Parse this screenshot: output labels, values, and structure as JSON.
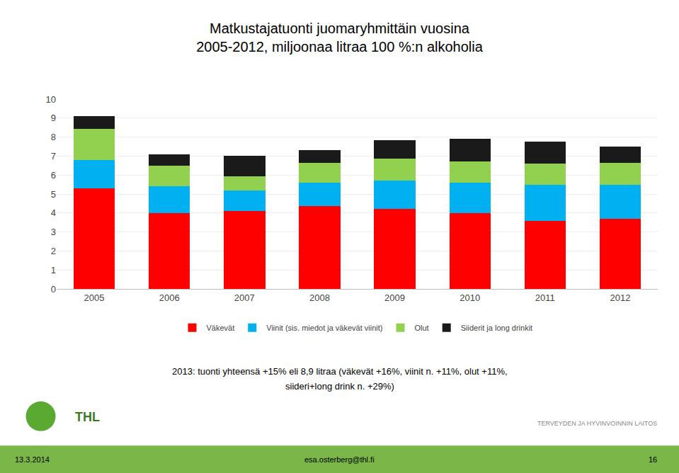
{
  "chart_data": {
    "type": "bar",
    "stacked": true,
    "title": "Matkustajatuonti juomaryhmittäin vuosina\n2005-2012, miljoonaa litraa 100 %:n alkoholia",
    "categories": [
      "2005",
      "2006",
      "2007",
      "2008",
      "2009",
      "2010",
      "2011",
      "2012"
    ],
    "series": [
      {
        "name": "Väkevät",
        "color": "#ff0000",
        "values": [
          5.3,
          4.0,
          4.1,
          4.35,
          4.2,
          4.0,
          3.6,
          3.7
        ]
      },
      {
        "name": "Viinit (sis. miedot ja väkevät viinit)",
        "color": "#00b0f0",
        "values": [
          1.5,
          1.4,
          1.1,
          1.25,
          1.5,
          1.6,
          1.9,
          1.8
        ]
      },
      {
        "name": "Olut",
        "color": "#92d050",
        "values": [
          1.65,
          1.1,
          0.75,
          1.05,
          1.15,
          1.1,
          1.1,
          1.15
        ]
      },
      {
        "name": "Siiderit ja long drinkit",
        "color": "#1a1a1a",
        "values": [
          0.65,
          0.6,
          1.05,
          0.65,
          1.0,
          1.2,
          1.15,
          0.85
        ]
      }
    ],
    "ylim": [
      0,
      10
    ],
    "yticks": [
      0,
      1,
      2,
      3,
      4,
      5,
      6,
      7,
      8,
      9,
      10
    ],
    "grid": true,
    "legend": "bottom",
    "annotations": [
      "2013: tuonti yhteensä +15% eli 8,9 litraa (väkevät +16%, viinit n. +11%, olut +11%,",
      "siideri+long drink n. +29%)",
      "THL",
      "TERVEYDEN JA HYVINVOINNIN LAITOS",
      "13.3.2014",
      "esa.osterberg@thl.fi",
      "16"
    ]
  }
}
